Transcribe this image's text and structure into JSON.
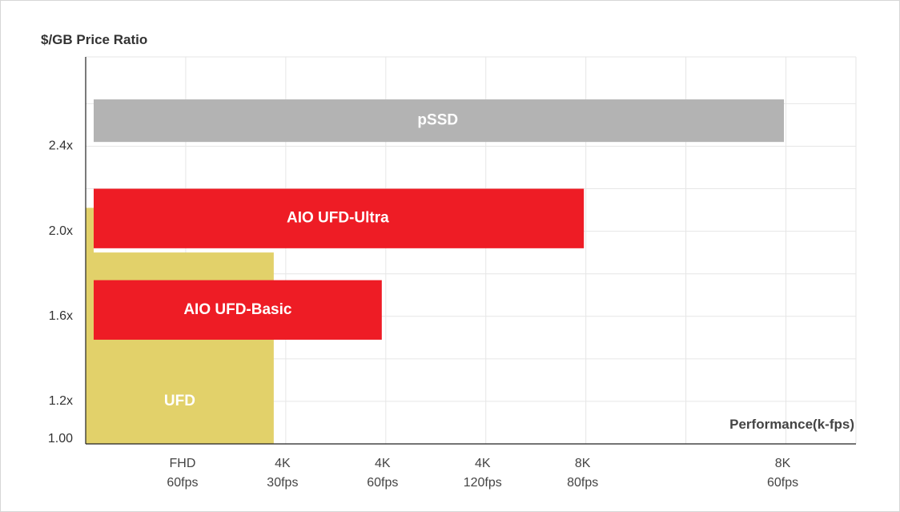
{
  "chart_data": {
    "type": "bar",
    "title": "",
    "ylabel": "$/GB Price Ratio",
    "xlabel": "Performance(k-fps)",
    "y_ticks": [
      "1.00",
      "1.2x",
      "1.6x",
      "2.0x",
      "2.4x"
    ],
    "x_ticks": [
      {
        "line1": "FHD",
        "line2": "60fps"
      },
      {
        "line1": "4K",
        "line2": "30fps"
      },
      {
        "line1": "4K",
        "line2": "60fps"
      },
      {
        "line1": "4K",
        "line2": "120fps"
      },
      {
        "line1": "8K",
        "line2": "80fps"
      },
      {
        "line1": "8K",
        "line2": "60fps"
      }
    ],
    "x_tick_positions": [
      0.5,
      1.0,
      1.5,
      2.0,
      2.5,
      3.5
    ],
    "xlim": [
      0,
      3.85
    ],
    "ylim": [
      1.0,
      2.82
    ],
    "series": [
      {
        "name": "UFD",
        "color": "#e2d16a",
        "x_start": 0,
        "x_end": 0.94,
        "y_bottom": 1.0,
        "y_top": 2.11,
        "step_x": 0.94,
        "step_y": 1.9,
        "label_x": 0.47,
        "label_y": 1.2
      },
      {
        "name": "AIO UFD-Basic",
        "color": "#ee1c25",
        "x_start": 0.04,
        "x_end": 1.48,
        "y_bottom": 1.49,
        "y_top": 1.77,
        "label_x": 0.76,
        "label_y": 1.63
      },
      {
        "name": "AIO UFD-Ultra",
        "color": "#ee1c25",
        "x_start": 0.04,
        "x_end": 2.49,
        "y_bottom": 1.92,
        "y_top": 2.2,
        "label_x": 1.26,
        "label_y": 2.06
      },
      {
        "name": "pSSD",
        "color": "#b3b3b3",
        "x_start": 0.04,
        "x_end": 3.49,
        "y_bottom": 2.42,
        "y_top": 2.62,
        "label_x": 1.76,
        "label_y": 2.52
      }
    ],
    "grid": true,
    "legend": "none"
  }
}
